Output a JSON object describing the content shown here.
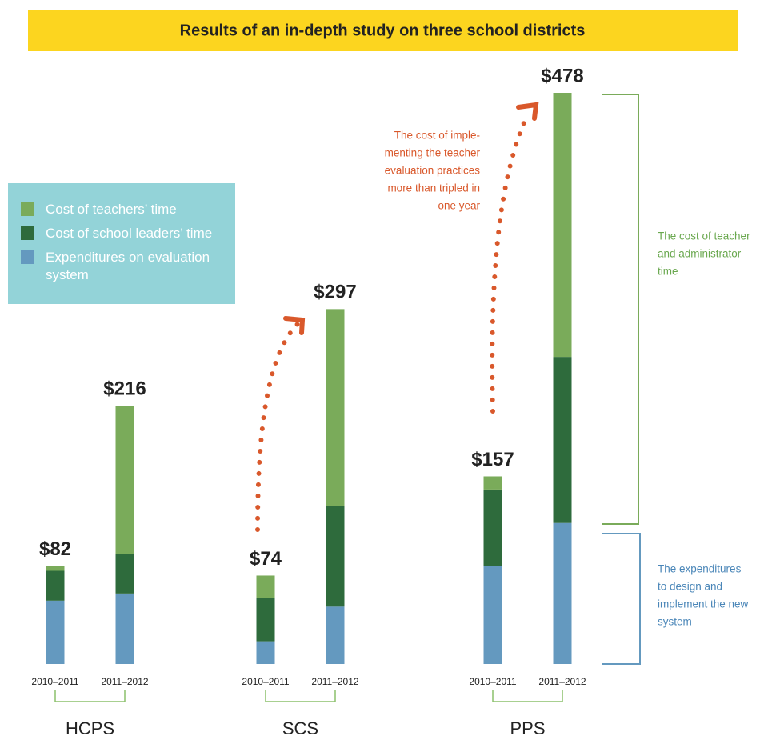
{
  "chart_data": {
    "type": "stacked_bar",
    "title": "Results of an in-depth study on three school districts",
    "groups": [
      "HCPS",
      "SCS",
      "PPS"
    ],
    "categories": [
      "2010–2011",
      "2011–2012",
      "2010–2011",
      "2011–2012",
      "2010–2011",
      "2011–2012"
    ],
    "series": [
      {
        "name": "Cost of teachers’ time",
        "color": "#7aab5a",
        "values": [
          4,
          124,
          19,
          165,
          11,
          221
        ]
      },
      {
        "name": "Cost of school leaders’ time",
        "color": "#2e6b3c",
        "values": [
          25,
          33,
          36,
          84,
          64,
          139
        ]
      },
      {
        "name": "Expenditures on evaluation system",
        "color": "#6499bf",
        "values": [
          53,
          59,
          19,
          48,
          82,
          118
        ]
      }
    ],
    "totals": [
      82,
      216,
      74,
      297,
      157,
      478
    ],
    "total_labels": [
      "$82",
      "$216",
      "$74",
      "$297",
      "$157",
      "$478"
    ],
    "annotation": {
      "color": "#d9582b",
      "lines": [
        "The cost of imple-",
        "menting the teacher",
        "evaluation practices",
        "more than tripled in",
        "one year"
      ]
    },
    "bracket_labels": [
      {
        "color": "#6aa84f",
        "lines": [
          "The cost of teacher",
          "and administrator",
          "time"
        ]
      },
      {
        "color": "#4a86b8",
        "lines": [
          "The expenditures",
          "to design and",
          "implement the new",
          "system"
        ]
      }
    ]
  }
}
